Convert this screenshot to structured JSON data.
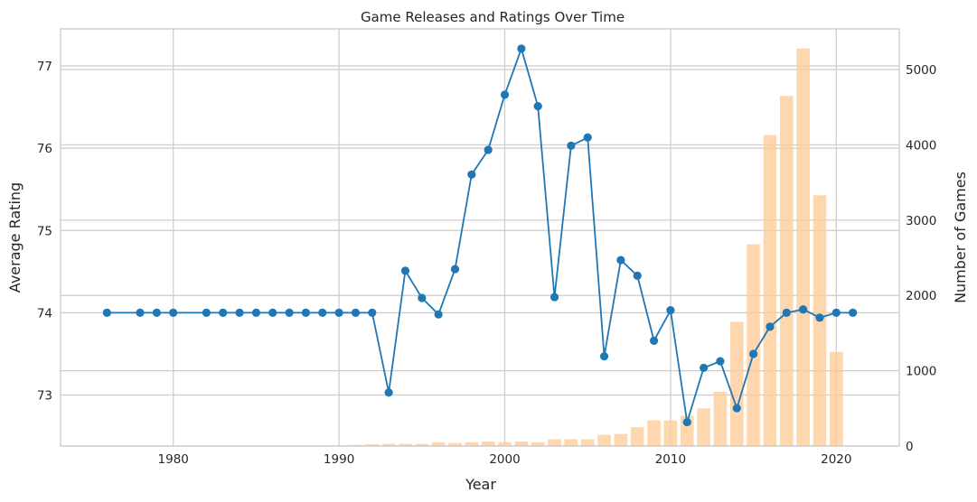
{
  "chart_data": {
    "title": "Game Releases and Ratings Over Time",
    "xlabel": "Year",
    "x_ticks": [
      1980,
      1990,
      2000,
      2010,
      2020
    ],
    "xlim": [
      1973.2,
      2023.8
    ],
    "grid": true,
    "left_axis": {
      "label": "Average Rating",
      "color": "#1f77b4",
      "ticks": [
        73,
        74,
        75,
        76,
        77
      ],
      "ylim": [
        72.38,
        77.45
      ]
    },
    "right_axis": {
      "label": "Number of Games",
      "color": "#ff7f0e",
      "ticks": [
        0,
        1000,
        2000,
        3000,
        4000,
        5000
      ],
      "ylim": [
        0,
        5540
      ]
    },
    "series": [
      {
        "type": "bar",
        "axis": "right",
        "color": "#ffcc99",
        "x": [
          1990,
          1991,
          1992,
          1993,
          1994,
          1995,
          1996,
          1997,
          1998,
          1999,
          2000,
          2001,
          2002,
          2003,
          2004,
          2005,
          2006,
          2007,
          2008,
          2009,
          2010,
          2011,
          2012,
          2013,
          2014,
          2015,
          2016,
          2017,
          2018,
          2019,
          2020
        ],
        "values": [
          5,
          15,
          25,
          30,
          30,
          30,
          50,
          40,
          50,
          60,
          50,
          60,
          50,
          90,
          90,
          90,
          150,
          160,
          250,
          340,
          340,
          400,
          500,
          720,
          1650,
          2680,
          4130,
          4650,
          5280,
          3330,
          1250
        ]
      },
      {
        "type": "line",
        "axis": "left",
        "color": "#1f77b4",
        "x": [
          1976,
          1978,
          1979,
          1980,
          1982,
          1983,
          1984,
          1985,
          1986,
          1987,
          1988,
          1989,
          1990,
          1991,
          1992,
          1993,
          1994,
          1995,
          1996,
          1997,
          1998,
          1999,
          2000,
          2001,
          2002,
          2003,
          2004,
          2005,
          2006,
          2007,
          2008,
          2009,
          2010,
          2011,
          2012,
          2013,
          2014,
          2015,
          2016,
          2017,
          2018,
          2019,
          2020,
          2021
        ],
        "values": [
          74,
          74,
          74,
          74,
          74,
          74,
          74,
          74,
          74,
          74,
          74,
          74,
          74,
          74,
          74,
          73.03,
          74.51,
          74.18,
          73.98,
          74.53,
          75.68,
          75.98,
          76.65,
          77.21,
          76.51,
          74.19,
          76.03,
          76.13,
          73.47,
          74.64,
          74.45,
          73.66,
          74.03,
          72.67,
          73.33,
          73.41,
          72.84,
          73.5,
          73.83,
          74.0,
          74.04,
          73.94,
          74,
          74
        ]
      }
    ]
  }
}
